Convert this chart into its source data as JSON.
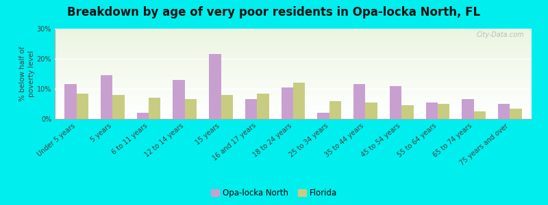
{
  "title": "Breakdown by age of very poor residents in Opa-locka North, FL",
  "ylabel": "% below half of\npoverty level",
  "categories": [
    "Under 5 years",
    "5 years",
    "6 to 11 years",
    "12 to 14 years",
    "15 years",
    "16 and 17 years",
    "18 to 24 years",
    "25 to 34 years",
    "35 to 44 years",
    "45 to 54 years",
    "55 to 64 years",
    "65 to 74 years",
    "75 years and over"
  ],
  "opa_locka": [
    11.5,
    14.5,
    2.0,
    13.0,
    21.5,
    6.5,
    10.5,
    2.0,
    11.5,
    11.0,
    5.5,
    6.5,
    5.0
  ],
  "florida": [
    8.5,
    8.0,
    7.0,
    6.5,
    8.0,
    8.5,
    12.0,
    6.0,
    5.5,
    4.5,
    5.0,
    2.5,
    3.5
  ],
  "opa_locka_color": "#c8a0d0",
  "florida_color": "#c8cc80",
  "outer_bg": "#00eeee",
  "ylim": [
    0,
    30
  ],
  "yticks": [
    0,
    10,
    20,
    30
  ],
  "ytick_labels": [
    "0%",
    "10%",
    "20%",
    "30%"
  ],
  "title_fontsize": 12,
  "axis_label_fontsize": 7.5,
  "tick_fontsize": 7,
  "legend_fontsize": 8.5,
  "watermark": "City-Data.com"
}
